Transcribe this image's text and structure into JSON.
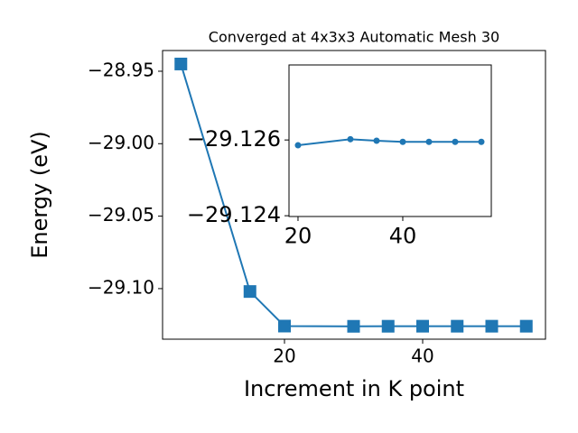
{
  "chart_data": [
    {
      "type": "line",
      "title": "Converged at 4x3x3 Automatic Mesh 30",
      "x_label": "Increment in K point",
      "y_label": "Energy (eV)",
      "x": [
        5,
        15,
        20,
        30,
        35,
        40,
        45,
        50,
        55
      ],
      "series": [
        {
          "color": "#1f77b4",
          "marker": "square",
          "values": [
            -28.945,
            -29.102,
            -29.12586,
            -29.12602,
            -29.12598,
            -29.12595,
            -29.12595,
            -29.12595,
            -29.12595
          ]
        }
      ],
      "xlim": [
        2.35,
        57.78
      ],
      "xticks": [
        20,
        40
      ],
      "ylim": [
        -29.1349,
        -28.9357
      ],
      "yticks": [
        {
          "value": -28.95,
          "label": "−28.95"
        },
        {
          "value": -29.0,
          "label": "−29.00"
        },
        {
          "value": -29.05,
          "label": "−29.05"
        },
        {
          "value": -29.1,
          "label": "−29.10"
        }
      ]
    },
    {
      "type": "line",
      "x": [
        20,
        30,
        35,
        40,
        45,
        50,
        55
      ],
      "series": [
        {
          "color": "#1f77b4",
          "marker": "circle",
          "values": [
            -29.12586,
            -29.12602,
            -29.12598,
            -29.12595,
            -29.12595,
            -29.12595,
            -29.12595
          ]
        }
      ],
      "xlim": [
        18.28,
        56.9
      ],
      "xticks": [
        20,
        40
      ],
      "ylim": [
        -29.12398,
        -29.12798
      ],
      "yticks": [
        {
          "value": -29.126,
          "label": "−29.126"
        },
        {
          "value": -29.124,
          "label": "−29.124"
        }
      ]
    }
  ]
}
